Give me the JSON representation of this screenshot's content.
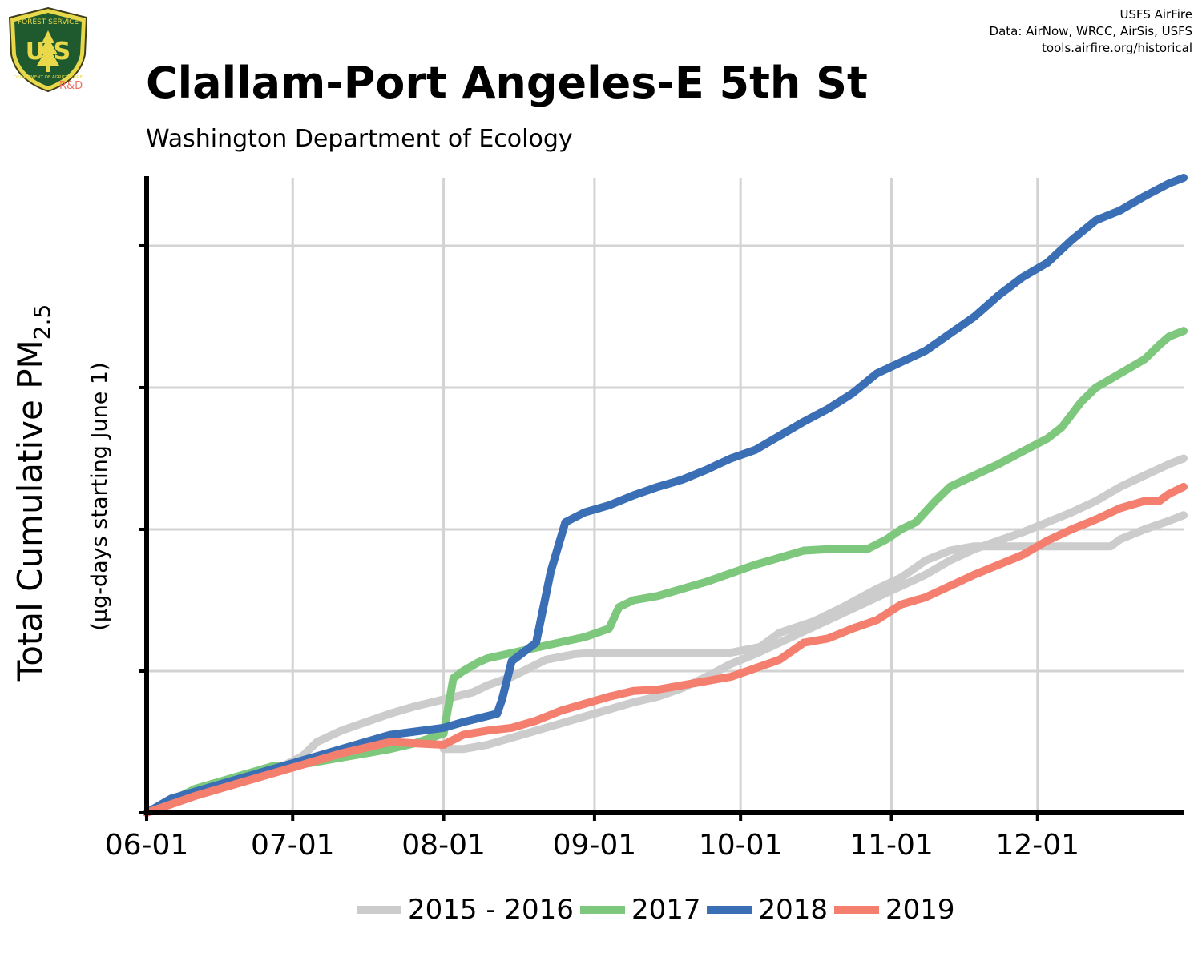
{
  "header": {
    "title": "Clallam-Port Angeles-E 5th St",
    "subtitle": "Washington Department of Ecology",
    "credits": [
      "USFS AirFire",
      "Data: AirNow, WRCC, AirSis, USFS",
      "tools.airfire.org/historical"
    ],
    "logo": {
      "top_text": "FOREST SERVICE",
      "letters": "U S",
      "bottom_text": "DEPARTMENT OF AGRICULTURE",
      "badge": "R&D"
    }
  },
  "chart_data": {
    "type": "line",
    "title": "Clallam-Port Angeles-E 5th St",
    "subtitle": "Washington Department of Ecology",
    "ylabel": "Total Cumulative PM",
    "ylabel_sub": "2.5",
    "ylabel2": "(µg-days starting June 1)",
    "xlabel": "",
    "x_ticks": [
      "06-01",
      "07-01",
      "08-01",
      "09-01",
      "10-01",
      "11-01",
      "12-01"
    ],
    "x_tick_days": [
      0,
      30,
      61,
      92,
      122,
      153,
      183
    ],
    "xlim": [
      0,
      213
    ],
    "ylim": [
      0,
      4.48
    ],
    "y_tick_values": [
      0,
      1,
      2,
      3,
      4
    ],
    "y_tick_labels_shown": false,
    "grid": true,
    "legend_position": "bottom",
    "series": [
      {
        "name": "2015 - 2016",
        "color": "#cccccc",
        "segments": [
          [
            [
              0,
              0
            ],
            [
              7,
              0.1
            ],
            [
              14,
              0.2
            ],
            [
              21,
              0.27
            ],
            [
              28,
              0.33
            ],
            [
              32,
              0.4
            ],
            [
              35,
              0.5
            ],
            [
              40,
              0.58
            ],
            [
              45,
              0.64
            ],
            [
              50,
              0.7
            ],
            [
              55,
              0.75
            ],
            [
              61,
              0.8
            ],
            [
              67,
              0.85
            ],
            [
              70,
              0.9
            ],
            [
              75,
              0.96
            ],
            [
              82,
              1.08
            ],
            [
              88,
              1.12
            ],
            [
              92,
              1.13
            ],
            [
              100,
              1.13
            ],
            [
              110,
              1.13
            ],
            [
              120,
              1.13
            ],
            [
              126,
              1.17
            ],
            [
              130,
              1.27
            ],
            [
              137,
              1.35
            ],
            [
              143,
              1.45
            ],
            [
              150,
              1.58
            ],
            [
              155,
              1.66
            ],
            [
              160,
              1.78
            ],
            [
              165,
              1.85
            ],
            [
              170,
              1.88
            ],
            [
              183,
              1.88
            ],
            [
              195,
              1.88
            ],
            [
              198,
              1.88
            ],
            [
              200,
              1.93
            ],
            [
              205,
              2.0
            ],
            [
              210,
              2.06
            ],
            [
              213,
              2.1
            ]
          ],
          [
            [
              61,
              0.45
            ],
            [
              65,
              0.45
            ],
            [
              70,
              0.48
            ],
            [
              75,
              0.53
            ],
            [
              80,
              0.58
            ],
            [
              85,
              0.63
            ],
            [
              90,
              0.68
            ],
            [
              95,
              0.73
            ],
            [
              100,
              0.78
            ],
            [
              105,
              0.82
            ],
            [
              110,
              0.88
            ],
            [
              115,
              0.96
            ],
            [
              120,
              1.05
            ],
            [
              125,
              1.12
            ],
            [
              130,
              1.2
            ],
            [
              135,
              1.28
            ],
            [
              140,
              1.36
            ],
            [
              145,
              1.44
            ],
            [
              150,
              1.52
            ],
            [
              155,
              1.6
            ],
            [
              160,
              1.68
            ],
            [
              165,
              1.78
            ],
            [
              170,
              1.86
            ],
            [
              175,
              1.92
            ],
            [
              180,
              1.98
            ],
            [
              185,
              2.05
            ],
            [
              190,
              2.12
            ],
            [
              195,
              2.2
            ],
            [
              200,
              2.3
            ],
            [
              205,
              2.38
            ],
            [
              210,
              2.46
            ],
            [
              213,
              2.5
            ]
          ]
        ]
      },
      {
        "name": "2017",
        "color": "#7dc87d",
        "segments": [
          [
            [
              0,
              0
            ],
            [
              10,
              0.17
            ],
            [
              20,
              0.27
            ],
            [
              26,
              0.33
            ],
            [
              30,
              0.33
            ],
            [
              35,
              0.36
            ],
            [
              40,
              0.39
            ],
            [
              45,
              0.42
            ],
            [
              50,
              0.45
            ],
            [
              55,
              0.49
            ],
            [
              61,
              0.56
            ],
            [
              63,
              0.95
            ],
            [
              65,
              1.0
            ],
            [
              68,
              1.06
            ],
            [
              70,
              1.09
            ],
            [
              74,
              1.12
            ],
            [
              78,
              1.15
            ],
            [
              82,
              1.18
            ],
            [
              86,
              1.21
            ],
            [
              90,
              1.24
            ],
            [
              95,
              1.3
            ],
            [
              97,
              1.45
            ],
            [
              100,
              1.5
            ],
            [
              105,
              1.53
            ],
            [
              110,
              1.58
            ],
            [
              115,
              1.63
            ],
            [
              120,
              1.69
            ],
            [
              125,
              1.75
            ],
            [
              130,
              1.8
            ],
            [
              135,
              1.85
            ],
            [
              140,
              1.86
            ],
            [
              145,
              1.86
            ],
            [
              148,
              1.86
            ],
            [
              152,
              1.93
            ],
            [
              155,
              2.0
            ],
            [
              158,
              2.05
            ],
            [
              162,
              2.2
            ],
            [
              165,
              2.3
            ],
            [
              170,
              2.38
            ],
            [
              175,
              2.46
            ],
            [
              180,
              2.55
            ],
            [
              185,
              2.64
            ],
            [
              188,
              2.72
            ],
            [
              192,
              2.9
            ],
            [
              195,
              3.0
            ],
            [
              200,
              3.1
            ],
            [
              205,
              3.2
            ],
            [
              208,
              3.3
            ],
            [
              210,
              3.36
            ],
            [
              213,
              3.4
            ]
          ]
        ]
      },
      {
        "name": "2018",
        "color": "#3a6eb5",
        "segments": [
          [
            [
              0,
              0
            ],
            [
              5,
              0.1
            ],
            [
              10,
              0.15
            ],
            [
              20,
              0.25
            ],
            [
              30,
              0.35
            ],
            [
              40,
              0.45
            ],
            [
              50,
              0.55
            ],
            [
              61,
              0.6
            ],
            [
              65,
              0.64
            ],
            [
              72,
              0.7
            ],
            [
              73,
              0.8
            ],
            [
              75,
              1.07
            ],
            [
              80,
              1.2
            ],
            [
              83,
              1.7
            ],
            [
              86,
              2.05
            ],
            [
              90,
              2.12
            ],
            [
              95,
              2.17
            ],
            [
              100,
              2.24
            ],
            [
              105,
              2.3
            ],
            [
              110,
              2.35
            ],
            [
              115,
              2.42
            ],
            [
              120,
              2.5
            ],
            [
              125,
              2.56
            ],
            [
              130,
              2.66
            ],
            [
              135,
              2.76
            ],
            [
              140,
              2.85
            ],
            [
              145,
              2.96
            ],
            [
              150,
              3.1
            ],
            [
              155,
              3.18
            ],
            [
              160,
              3.26
            ],
            [
              165,
              3.38
            ],
            [
              170,
              3.5
            ],
            [
              175,
              3.65
            ],
            [
              180,
              3.78
            ],
            [
              185,
              3.88
            ],
            [
              190,
              4.04
            ],
            [
              195,
              4.18
            ],
            [
              200,
              4.25
            ],
            [
              205,
              4.35
            ],
            [
              210,
              4.44
            ],
            [
              213,
              4.48
            ]
          ]
        ]
      },
      {
        "name": "2019",
        "color": "#f57f6f",
        "segments": [
          [
            [
              0,
              0
            ],
            [
              10,
              0.12
            ],
            [
              20,
              0.22
            ],
            [
              30,
              0.32
            ],
            [
              40,
              0.42
            ],
            [
              50,
              0.5
            ],
            [
              61,
              0.48
            ],
            [
              65,
              0.55
            ],
            [
              70,
              0.58
            ],
            [
              75,
              0.6
            ],
            [
              80,
              0.65
            ],
            [
              85,
              0.72
            ],
            [
              90,
              0.77
            ],
            [
              95,
              0.82
            ],
            [
              100,
              0.86
            ],
            [
              105,
              0.87
            ],
            [
              110,
              0.9
            ],
            [
              115,
              0.93
            ],
            [
              120,
              0.96
            ],
            [
              125,
              1.02
            ],
            [
              130,
              1.08
            ],
            [
              135,
              1.2
            ],
            [
              140,
              1.23
            ],
            [
              145,
              1.3
            ],
            [
              150,
              1.36
            ],
            [
              155,
              1.47
            ],
            [
              160,
              1.52
            ],
            [
              165,
              1.6
            ],
            [
              170,
              1.68
            ],
            [
              175,
              1.75
            ],
            [
              180,
              1.82
            ],
            [
              185,
              1.92
            ],
            [
              190,
              2.0
            ],
            [
              195,
              2.07
            ],
            [
              200,
              2.15
            ],
            [
              205,
              2.2
            ],
            [
              208,
              2.2
            ],
            [
              210,
              2.25
            ],
            [
              213,
              2.3
            ]
          ]
        ]
      }
    ]
  }
}
